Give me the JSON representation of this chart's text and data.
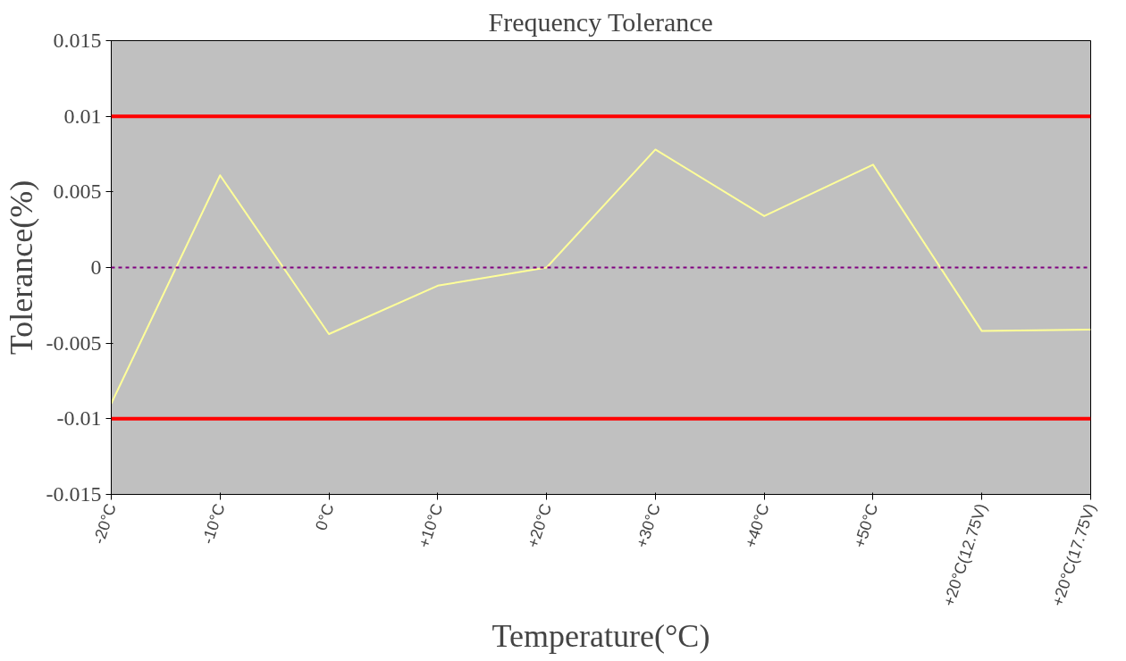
{
  "chart_data": {
    "type": "line",
    "title": "Frequency Tolerance",
    "xlabel": "Temperature(°C)",
    "ylabel": "Tolerance(%)",
    "categories": [
      "-20°C",
      "-10°C",
      "0°C",
      "+10°C",
      "+20°C",
      "+30°C",
      "+40°C",
      "+50°C",
      "+20°C(12.75V)",
      "+20°C(17.75V)"
    ],
    "series": [
      {
        "color": "#ffff99",
        "values": [
          -0.009,
          0.0061,
          -0.0044,
          -0.0012,
          0.0,
          0.0078,
          0.0034,
          0.0068,
          -0.0042,
          -0.0041
        ]
      }
    ],
    "ylim": [
      -0.015,
      0.015
    ],
    "yticks": [
      -0.015,
      -0.01,
      -0.005,
      0,
      0.005,
      0.01,
      0.015
    ],
    "ref_lines": [
      {
        "axis": "y",
        "value": 0.01,
        "color": "#ff0000",
        "line_style": "solid"
      },
      {
        "axis": "y",
        "value": -0.01,
        "color": "#ff0000",
        "line_style": "solid"
      },
      {
        "axis": "y",
        "value": 0,
        "color": "#800080",
        "line_style": "dashed"
      }
    ],
    "grid": false
  }
}
